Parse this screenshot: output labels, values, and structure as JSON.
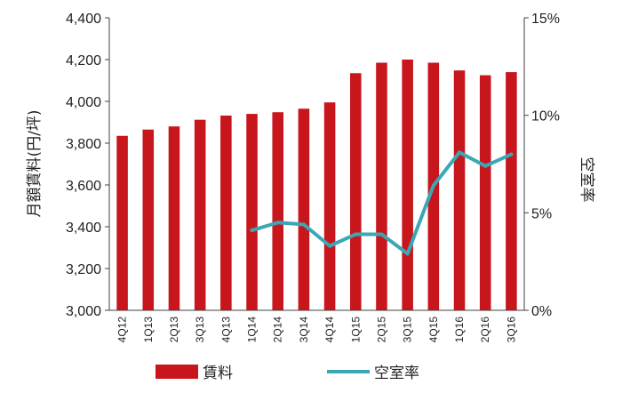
{
  "chart_data": {
    "type": "bar",
    "categories": [
      "4Q12",
      "1Q13",
      "2Q13",
      "3Q13",
      "4Q13",
      "1Q14",
      "2Q14",
      "3Q14",
      "4Q14",
      "1Q15",
      "2Q15",
      "3Q15",
      "4Q15",
      "1Q16",
      "2Q16",
      "3Q16"
    ],
    "series": [
      {
        "name": "賃料",
        "type": "bar",
        "axis": "left",
        "color": "#c8161d",
        "values": [
          3835,
          3865,
          3880,
          3912,
          3932,
          3940,
          3948,
          3965,
          3995,
          4135,
          4185,
          4200,
          4185,
          4148,
          4125,
          4140
        ]
      },
      {
        "name": "空室率",
        "type": "line",
        "axis": "right",
        "color": "#3aa8b4",
        "values": [
          null,
          null,
          null,
          null,
          null,
          4.1,
          4.5,
          4.4,
          3.3,
          3.9,
          3.9,
          2.9,
          6.4,
          8.1,
          7.4,
          8.0
        ]
      }
    ],
    "left_axis": {
      "label": "月額賃料(円/坪)",
      "range": [
        3000,
        4400
      ],
      "ticks": [
        "3,000",
        "3,200",
        "3,400",
        "3,600",
        "3,800",
        "4,000",
        "4,200",
        "4,400"
      ]
    },
    "right_axis": {
      "label": "空室率",
      "range": [
        0,
        15
      ],
      "ticks": [
        "0%",
        "5%",
        "10%",
        "15%"
      ]
    },
    "grid": false,
    "legend": {
      "position": "bottom"
    }
  }
}
